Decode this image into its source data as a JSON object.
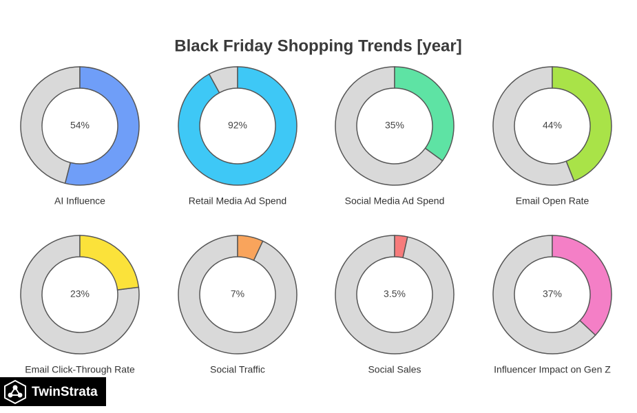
{
  "title": "Black Friday Shopping Trends [year]",
  "logo": "TwinStrata",
  "chart_data": [
    {
      "type": "donut",
      "title": "AI Influence",
      "values": [
        54
      ],
      "value_labels": [
        "54%"
      ],
      "color": "#6f9ef8"
    },
    {
      "type": "donut",
      "title": "Retail Media Ad Spend",
      "values": [
        92
      ],
      "value_labels": [
        "92%"
      ],
      "color": "#3ec8f6"
    },
    {
      "type": "donut",
      "title": "Social Media Ad Spend",
      "values": [
        35
      ],
      "value_labels": [
        "35%"
      ],
      "color": "#5ee3a4"
    },
    {
      "type": "donut",
      "title": "Email Open Rate",
      "values": [
        44
      ],
      "value_labels": [
        "44%"
      ],
      "color": "#a9e348"
    },
    {
      "type": "donut",
      "title": "Email Click-Through Rate",
      "values": [
        23
      ],
      "value_labels": [
        "23%"
      ],
      "color": "#fbe23a"
    },
    {
      "type": "donut",
      "title": "Social Traffic",
      "values": [
        7
      ],
      "value_labels": [
        "7%"
      ],
      "color": "#f9a45c"
    },
    {
      "type": "donut",
      "title": "Social Sales",
      "values": [
        3.5
      ],
      "value_labels": [
        "3.5%"
      ],
      "color": "#f77b7b"
    },
    {
      "type": "donut",
      "title": "Influencer Impact on Gen Z",
      "values": [
        37
      ],
      "value_labels": [
        "37%"
      ],
      "color": "#f47fc6"
    }
  ]
}
